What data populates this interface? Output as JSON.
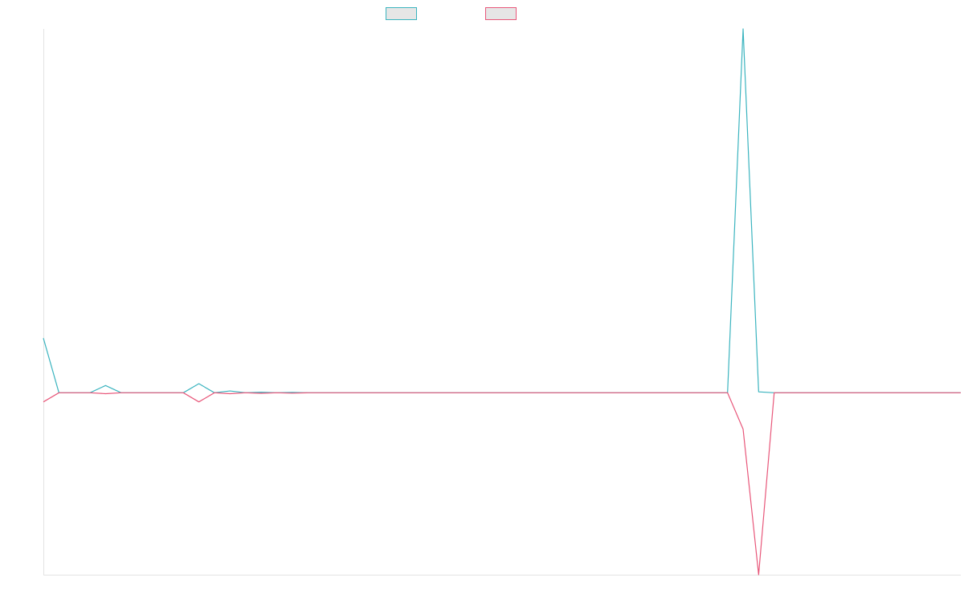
{
  "colors": {
    "series_a": "#3bb4bf",
    "series_b": "#e8577a",
    "axis": "#e3e3e3",
    "legend_fill": "#e6e6e6"
  },
  "legend": {
    "items": [
      {
        "color": "#3bb4bf"
      },
      {
        "color": "#e8577a"
      }
    ]
  },
  "chart_data": {
    "type": "line",
    "title": "",
    "xlabel": "",
    "ylabel": "",
    "grid": false,
    "legend_position": "top-center",
    "x_ticks_shown": false,
    "y_ticks_shown": false,
    "ylim": [
      -1,
      2
    ],
    "xlim": [
      0,
      59
    ],
    "series": [
      {
        "color": "#3bb4bf",
        "values": [
          0.3,
          0,
          0,
          0,
          0.04,
          0,
          0,
          0,
          0,
          0,
          0.05,
          0,
          0.01,
          0,
          0.003,
          0,
          0.002,
          0,
          0,
          0,
          0,
          0,
          0,
          0,
          0,
          0,
          0,
          0,
          0,
          0,
          0,
          0,
          0,
          0,
          0,
          0,
          0,
          0,
          0,
          0,
          0,
          0,
          0,
          0,
          0,
          2,
          0.005,
          0,
          0,
          0,
          0,
          0,
          0,
          0,
          0,
          0,
          0,
          0,
          0,
          0
        ]
      },
      {
        "color": "#e8577a",
        "values": [
          -0.05,
          0,
          0,
          0,
          -0.005,
          0,
          0,
          0,
          0,
          0,
          -0.05,
          0,
          -0.005,
          0,
          -0.003,
          0,
          -0.002,
          0,
          0,
          0,
          0,
          0,
          0,
          0,
          0,
          0,
          0,
          0,
          0,
          0,
          0,
          0,
          0,
          0,
          0,
          0,
          0,
          0,
          0,
          0,
          0,
          0,
          0,
          0,
          0,
          -0.2,
          -1,
          0,
          0,
          0,
          0,
          0,
          0,
          0,
          0,
          0,
          0,
          0,
          0,
          0
        ]
      }
    ]
  }
}
